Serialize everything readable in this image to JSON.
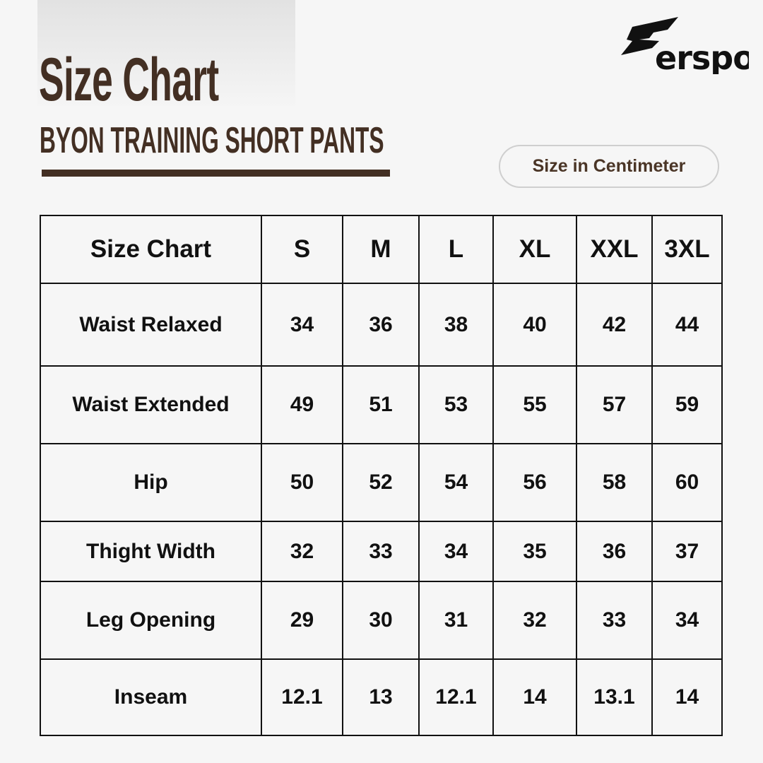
{
  "header": {
    "title": "Size Chart",
    "subtitle": "BYON TRAINING SHORT PANTS",
    "unit_badge": "Size in Centimeter",
    "brand": "erspo"
  },
  "colors": {
    "accent": "#432f23",
    "background": "#f6f6f6"
  },
  "table": {
    "headers": [
      "Size Chart",
      "S",
      "M",
      "L",
      "XL",
      "XXL",
      "3XL"
    ],
    "rows": [
      {
        "label": "Waist Relaxed",
        "values": [
          "34",
          "36",
          "38",
          "40",
          "42",
          "44"
        ]
      },
      {
        "label": "Waist Extended",
        "values": [
          "49",
          "51",
          "53",
          "55",
          "57",
          "59"
        ]
      },
      {
        "label": "Hip",
        "values": [
          "50",
          "52",
          "54",
          "56",
          "58",
          "60"
        ]
      },
      {
        "label": "Thight Width",
        "values": [
          "32",
          "33",
          "34",
          "35",
          "36",
          "37"
        ]
      },
      {
        "label": "Leg Opening",
        "values": [
          "29",
          "30",
          "31",
          "32",
          "33",
          "34"
        ]
      },
      {
        "label": "Inseam",
        "values": [
          "12.1",
          "13",
          "12.1",
          "14",
          "13.1",
          "14"
        ]
      }
    ]
  }
}
